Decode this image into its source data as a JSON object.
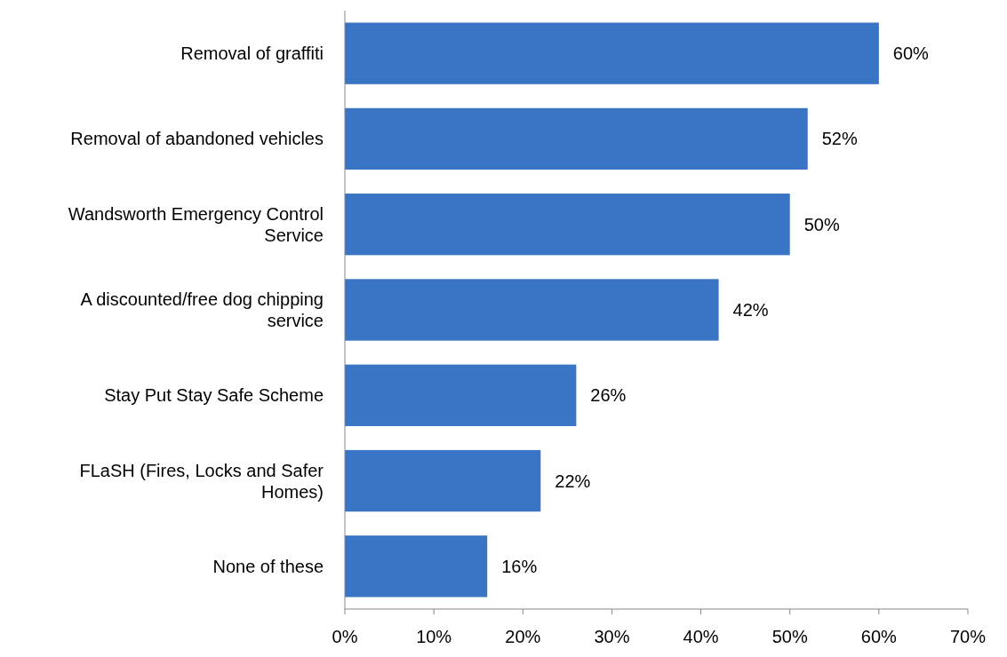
{
  "chart_data": {
    "type": "bar",
    "orientation": "horizontal",
    "categories": [
      "Removal of graffiti",
      "Removal of abandoned vehicles",
      "Wandsworth Emergency Control Service",
      "A discounted/free dog chipping service",
      "Stay Put Stay Safe Scheme",
      "FLaSH (Fires, Locks and Safer Homes)",
      "None of these"
    ],
    "values": [
      60,
      52,
      50,
      42,
      26,
      22,
      16
    ],
    "color": "#3a74c4",
    "xlim": [
      0,
      70
    ],
    "xticks": [
      {
        "value": 0,
        "label": "0%"
      },
      {
        "value": 10,
        "label": "10%"
      },
      {
        "value": 20,
        "label": "20%"
      },
      {
        "value": 30,
        "label": "30%"
      },
      {
        "value": 40,
        "label": "40%"
      },
      {
        "value": 50,
        "label": "50%"
      },
      {
        "value": 60,
        "label": "60%"
      },
      {
        "value": 70,
        "label": "70%"
      }
    ],
    "value_labels": [
      "60%",
      "52%",
      "50%",
      "42%",
      "26%",
      "22%",
      "16%"
    ],
    "grid": false
  }
}
